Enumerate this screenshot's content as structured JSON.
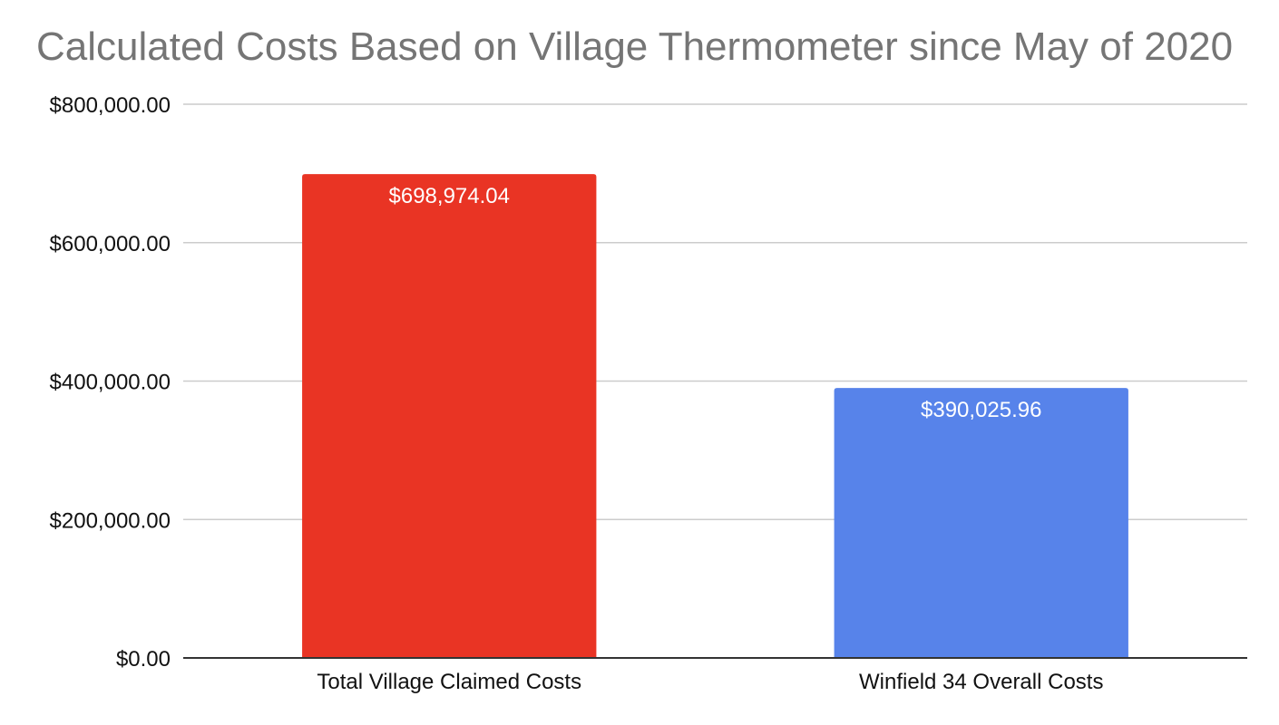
{
  "chart_data": {
    "type": "bar",
    "title": "Calculated Costs Based on Village Thermometer since May of 2020",
    "categories": [
      "Total Village Claimed Costs",
      "Winfield 34 Overall Costs"
    ],
    "values": [
      698974.04,
      390025.96
    ],
    "data_labels": [
      "$698,974.04",
      "$390,025.96"
    ],
    "colors": [
      "#e93424",
      "#5783ea"
    ],
    "ylim": [
      0,
      800000
    ],
    "yticks": [
      0,
      200000,
      400000,
      600000,
      800000
    ],
    "ytick_labels": [
      "$0.00",
      "$200,000.00",
      "$400,000.00",
      "$600,000.00",
      "$800,000.00"
    ],
    "grid": true,
    "legend": "none"
  }
}
